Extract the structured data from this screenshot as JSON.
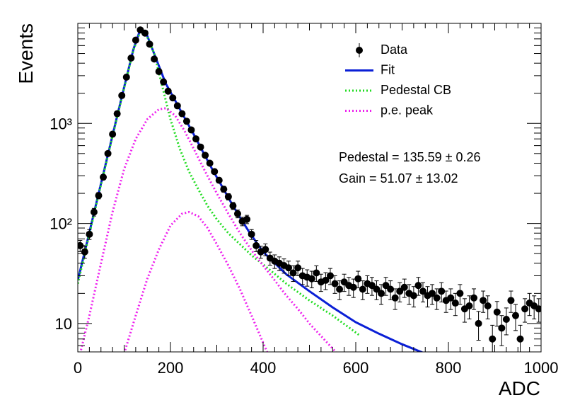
{
  "chart_data": {
    "type": "errorbar",
    "x_label": "ADC",
    "y_label": "Events",
    "log_y": true,
    "legend": "top-right",
    "xlim": [
      0,
      1000
    ],
    "ylim": [
      5.2,
      10000
    ],
    "xticks": [
      0,
      200,
      400,
      600,
      800,
      1000
    ],
    "yticks": [
      10,
      {
        "value": 100,
        "label": "10²"
      },
      {
        "value": 1000,
        "label": "10³"
      }
    ],
    "annotations": [
      "Pedestal = 135.59 ± 0.26",
      "Gain = 51.07 ± 13.02"
    ],
    "series": [
      {
        "name": "Data",
        "type": "errorbar",
        "color": "#000000",
        "x": [
          5,
          15,
          25,
          35,
          45,
          55,
          65,
          75,
          85,
          95,
          105,
          115,
          125,
          135,
          145,
          155,
          165,
          175,
          185,
          195,
          205,
          215,
          225,
          235,
          245,
          255,
          265,
          275,
          285,
          295,
          305,
          315,
          325,
          335,
          345,
          355,
          365,
          375,
          385,
          395,
          405,
          415,
          425,
          435,
          445,
          455,
          465,
          475,
          485,
          495,
          505,
          515,
          525,
          535,
          545,
          555,
          565,
          575,
          585,
          595,
          605,
          615,
          625,
          635,
          645,
          655,
          665,
          675,
          685,
          695,
          705,
          715,
          725,
          735,
          745,
          755,
          765,
          775,
          785,
          795,
          805,
          815,
          825,
          835,
          845,
          855,
          865,
          875,
          885,
          895,
          905,
          915,
          925,
          935,
          945,
          955,
          965,
          975,
          985,
          995
        ],
        "values": [
          60,
          52,
          78,
          130,
          190,
          290,
          500,
          780,
          1250,
          1900,
          2900,
          4500,
          6800,
          8600,
          8000,
          6200,
          4400,
          3300,
          2600,
          2100,
          1800,
          1500,
          1250,
          1050,
          860,
          700,
          580,
          480,
          400,
          330,
          270,
          220,
          185,
          150,
          125,
          105,
          110,
          78,
          60,
          52,
          55,
          45,
          42,
          40,
          38,
          36,
          32,
          36,
          30,
          29,
          28,
          32,
          26,
          27,
          30,
          25,
          22,
          26,
          24,
          23,
          28,
          22,
          25,
          24,
          22,
          20,
          24,
          22,
          18,
          21,
          23,
          20,
          19,
          24,
          21,
          19,
          20,
          18,
          21,
          17,
          18,
          16,
          20,
          14,
          15,
          18,
          10,
          17,
          15,
          7,
          13,
          9,
          11,
          17,
          12,
          7,
          14,
          16,
          15,
          14
        ],
        "errors": [
          7.7,
          7.2,
          8.8,
          11.4,
          13.8,
          17,
          22.4,
          27.9,
          35.4,
          43.6,
          53.9,
          67.1,
          82.5,
          92.7,
          89.4,
          78.7,
          66.3,
          57.4,
          51,
          45.8,
          42.4,
          38.7,
          35.4,
          32.4,
          29.3,
          26.5,
          24.1,
          21.9,
          20,
          18.2,
          16.4,
          14.8,
          13.6,
          12.2,
          11.2,
          10.2,
          10.5,
          8.8,
          7.7,
          7.2,
          7.4,
          6.7,
          6.5,
          6.3,
          6.2,
          6,
          5.7,
          6,
          5.5,
          5.4,
          5.3,
          5.7,
          5.1,
          5.2,
          5.5,
          5,
          4.7,
          5.1,
          4.9,
          4.8,
          5.3,
          4.7,
          5,
          4.9,
          4.7,
          4.5,
          4.9,
          4.7,
          4.2,
          4.6,
          4.8,
          4.5,
          4.4,
          4.9,
          4.6,
          4.4,
          4.5,
          4.2,
          4.6,
          4.1,
          4.2,
          4,
          4.5,
          3.7,
          3.9,
          4.2,
          3.2,
          4.1,
          3.9,
          2.6,
          3.6,
          3,
          3.3,
          4.1,
          3.5,
          2.6,
          3.7,
          4,
          3.9,
          3.7
        ]
      },
      {
        "name": "Fit",
        "type": "line",
        "color": "#0a1fd6",
        "x": [
          0,
          20,
          40,
          60,
          80,
          100,
          120,
          135,
          150,
          170,
          190,
          210,
          230,
          250,
          270,
          290,
          310,
          330,
          350,
          370,
          400,
          450,
          500,
          550,
          600,
          650,
          700,
          745
        ],
        "values": [
          27,
          65,
          160,
          390,
          950,
          2300,
          5500,
          8700,
          7500,
          4300,
          2500,
          1700,
          1150,
          780,
          520,
          350,
          240,
          165,
          115,
          82,
          52,
          31,
          21,
          14.5,
          10.3,
          7.9,
          6.2,
          5.1
        ]
      },
      {
        "name": "Pedestal CB",
        "type": "dotted",
        "color": "#22dd22",
        "x": [
          0,
          20,
          40,
          60,
          80,
          100,
          120,
          135,
          150,
          165,
          180,
          200,
          220,
          240,
          260,
          280,
          300,
          325,
          350,
          375,
          400,
          450,
          500,
          550,
          610
        ],
        "values": [
          25,
          62,
          155,
          380,
          930,
          2250,
          5400,
          8300,
          7300,
          5000,
          2600,
          1100,
          560,
          330,
          220,
          150,
          110,
          80,
          62,
          48,
          39,
          25,
          17,
          12,
          7.5
        ]
      },
      {
        "name": "p.e. peak",
        "type": "dotted",
        "color": "#ee22ee",
        "x": [
          5,
          25,
          50,
          75,
          100,
          125,
          150,
          175,
          190,
          210,
          230,
          250,
          275,
          300,
          325,
          350,
          375,
          400,
          425,
          450,
          475,
          500,
          525,
          560,
          null,
          100,
          125,
          150,
          175,
          200,
          225,
          240,
          260,
          280,
          300,
          325,
          350,
          375,
          410
        ],
        "values": [
          5,
          12,
          40,
          130,
          350,
          700,
          1100,
          1380,
          1420,
          1200,
          850,
          560,
          330,
          200,
          125,
          80,
          54,
          38,
          27,
          19,
          14,
          10,
          7.5,
          5,
          null,
          5,
          12,
          28,
          55,
          95,
          125,
          130,
          118,
          90,
          62,
          38,
          22,
          12,
          5
        ]
      }
    ]
  }
}
